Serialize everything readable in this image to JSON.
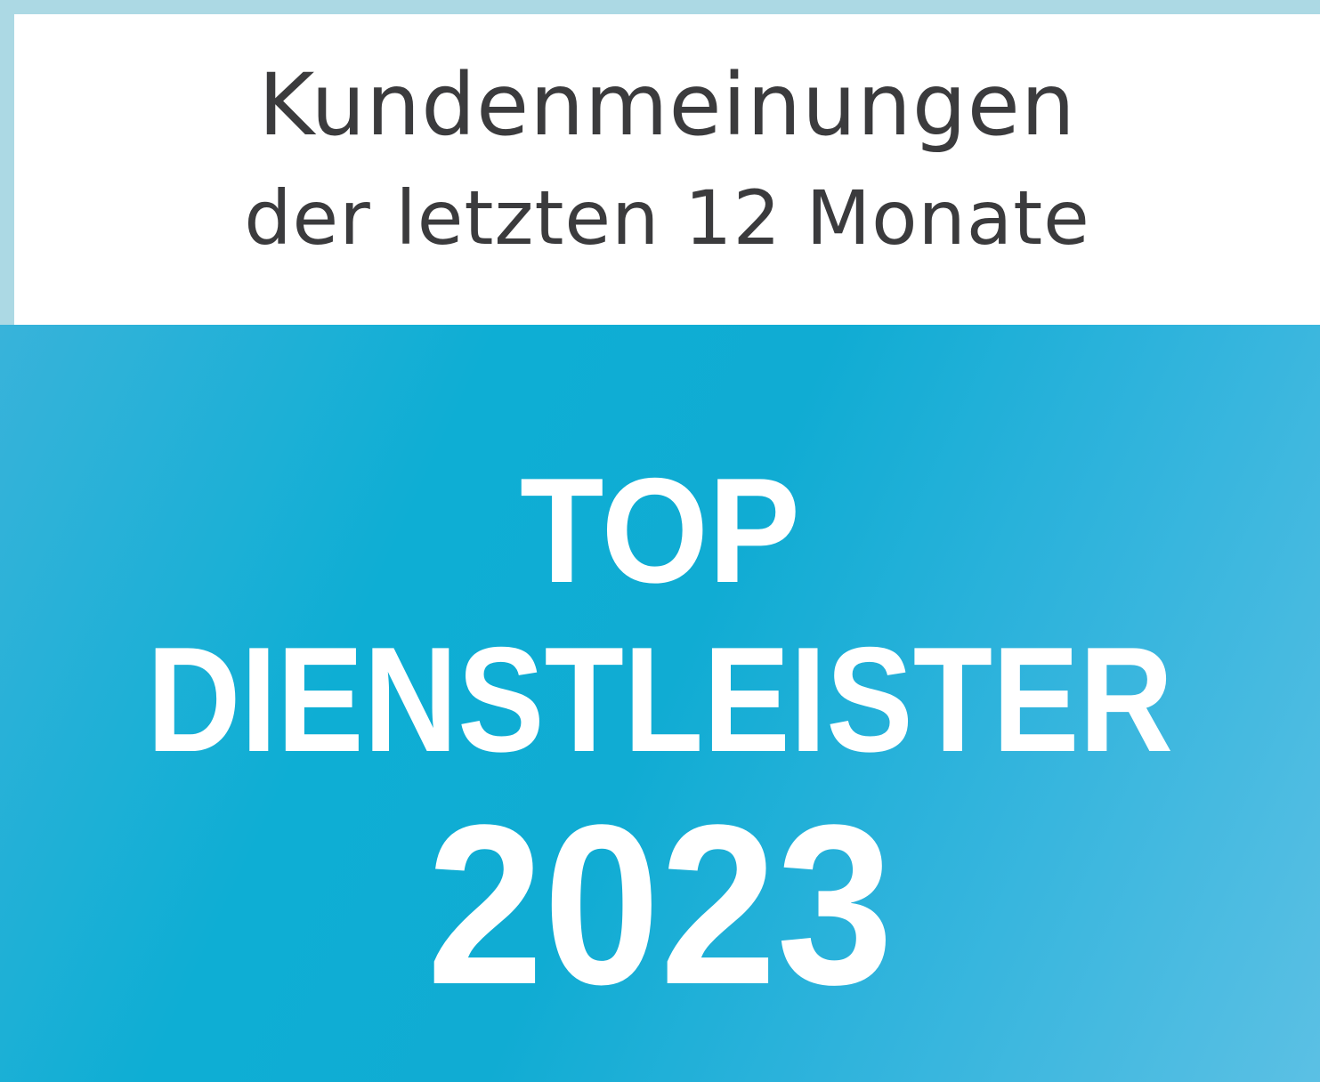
{
  "header": {
    "line1": "Kundenmeinungen",
    "line2": "der letzten 12 Monate"
  },
  "badge": {
    "line1": "TOP",
    "line2": "DIENSTLEISTER",
    "year": "2023"
  },
  "colors": {
    "border": "#acd9e4",
    "blue": "#10acd3",
    "text": "#3b3b3d"
  }
}
